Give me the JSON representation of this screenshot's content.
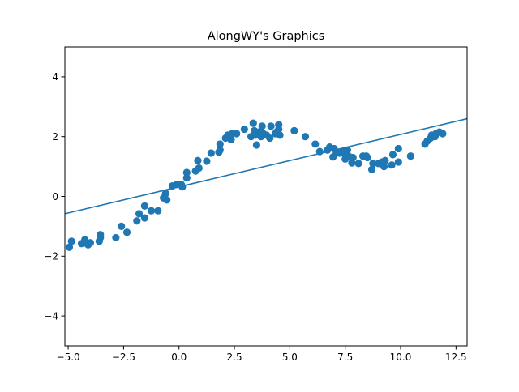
{
  "chart_data": {
    "type": "scatter",
    "title": "AlongWY's Graphics",
    "xlabel": "",
    "ylabel": "",
    "xlim": [
      -5.15,
      13.0
    ],
    "ylim": [
      -5.0,
      5.0
    ],
    "xticks": [
      -5.0,
      -2.5,
      0.0,
      2.5,
      5.0,
      7.5,
      10.0,
      12.5
    ],
    "xtick_labels": [
      "−5.0",
      "−2.5",
      "0.0",
      "2.5",
      "5.0",
      "7.5",
      "10.0",
      "12.5"
    ],
    "yticks": [
      -4,
      -2,
      0,
      2,
      4
    ],
    "ytick_labels": [
      "−4",
      "−2",
      "0",
      "2",
      "4"
    ],
    "grid": false,
    "legend": "none",
    "colors": {
      "points": "#1f77b4",
      "line": "#1f77b4",
      "axes": "#000000"
    },
    "series": [
      {
        "type": "scatter",
        "points": [
          [
            -4.95,
            -1.7
          ],
          [
            -4.85,
            -1.5
          ],
          [
            -4.4,
            -1.58
          ],
          [
            -4.25,
            -1.45
          ],
          [
            -4.15,
            -1.58
          ],
          [
            -4.1,
            -1.62
          ],
          [
            -4.0,
            -1.55
          ],
          [
            -3.6,
            -1.5
          ],
          [
            -3.55,
            -1.38
          ],
          [
            -3.55,
            -1.28
          ],
          [
            -2.85,
            -1.38
          ],
          [
            -2.6,
            -1.0
          ],
          [
            -2.35,
            -1.2
          ],
          [
            -1.9,
            -0.82
          ],
          [
            -1.8,
            -0.58
          ],
          [
            -1.55,
            -0.32
          ],
          [
            -1.55,
            -0.72
          ],
          [
            -1.25,
            -0.48
          ],
          [
            -0.95,
            -0.48
          ],
          [
            -0.7,
            -0.05
          ],
          [
            -0.6,
            0.1
          ],
          [
            -0.55,
            -0.12
          ],
          [
            -0.3,
            0.35
          ],
          [
            -0.1,
            0.4
          ],
          [
            0.1,
            0.4
          ],
          [
            0.15,
            0.32
          ],
          [
            0.35,
            0.8
          ],
          [
            0.35,
            0.62
          ],
          [
            0.75,
            0.85
          ],
          [
            0.9,
            0.95
          ],
          [
            0.85,
            1.2
          ],
          [
            1.25,
            1.18
          ],
          [
            1.45,
            1.45
          ],
          [
            1.8,
            1.48
          ],
          [
            1.85,
            1.55
          ],
          [
            1.85,
            1.75
          ],
          [
            2.1,
            1.95
          ],
          [
            2.2,
            2.05
          ],
          [
            2.35,
            1.9
          ],
          [
            2.4,
            2.1
          ],
          [
            2.6,
            2.1
          ],
          [
            2.95,
            2.25
          ],
          [
            3.25,
            2.0
          ],
          [
            3.35,
            2.45
          ],
          [
            3.4,
            2.2
          ],
          [
            3.45,
            2.05
          ],
          [
            3.5,
            1.72
          ],
          [
            3.6,
            2.15
          ],
          [
            3.7,
            2.0
          ],
          [
            3.75,
            2.35
          ],
          [
            3.8,
            2.1
          ],
          [
            3.95,
            2.05
          ],
          [
            4.1,
            1.95
          ],
          [
            4.15,
            2.35
          ],
          [
            4.35,
            2.1
          ],
          [
            4.4,
            2.15
          ],
          [
            4.5,
            2.4
          ],
          [
            4.55,
            2.05
          ],
          [
            4.5,
            2.25
          ],
          [
            5.2,
            2.2
          ],
          [
            5.7,
            2.0
          ],
          [
            6.15,
            1.75
          ],
          [
            6.35,
            1.5
          ],
          [
            6.7,
            1.55
          ],
          [
            6.8,
            1.65
          ],
          [
            6.95,
            1.32
          ],
          [
            7.0,
            1.6
          ],
          [
            7.1,
            1.45
          ],
          [
            7.25,
            1.45
          ],
          [
            7.4,
            1.5
          ],
          [
            7.5,
            1.4
          ],
          [
            7.5,
            1.25
          ],
          [
            7.6,
            1.55
          ],
          [
            7.65,
            1.35
          ],
          [
            7.8,
            1.12
          ],
          [
            7.85,
            1.3
          ],
          [
            8.1,
            1.1
          ],
          [
            8.3,
            1.35
          ],
          [
            8.45,
            1.35
          ],
          [
            8.5,
            1.3
          ],
          [
            8.7,
            0.9
          ],
          [
            8.75,
            1.1
          ],
          [
            9.0,
            1.1
          ],
          [
            9.15,
            1.15
          ],
          [
            9.25,
            1.0
          ],
          [
            9.3,
            1.2
          ],
          [
            9.6,
            1.05
          ],
          [
            9.65,
            1.4
          ],
          [
            9.9,
            1.15
          ],
          [
            9.9,
            1.6
          ],
          [
            10.45,
            1.35
          ],
          [
            11.1,
            1.75
          ],
          [
            11.2,
            1.85
          ],
          [
            11.35,
            1.95
          ],
          [
            11.4,
            2.05
          ],
          [
            11.55,
            2.0
          ],
          [
            11.6,
            2.1
          ],
          [
            11.75,
            2.15
          ],
          [
            11.9,
            2.1
          ]
        ]
      },
      {
        "type": "line",
        "points": [
          [
            -5.15,
            -0.58
          ],
          [
            13.0,
            2.6
          ]
        ]
      }
    ]
  }
}
